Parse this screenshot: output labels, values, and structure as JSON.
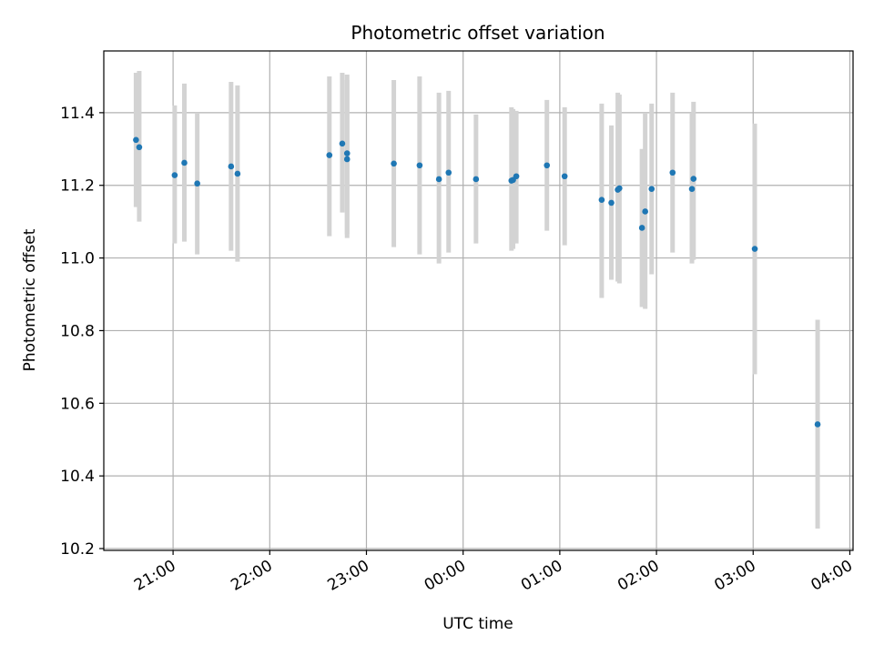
{
  "chart_data": {
    "type": "scatter",
    "title": "Photometric offset variation",
    "xlabel": "UTC time",
    "ylabel": "Photometric offset",
    "x_is_time": true,
    "xlim": [
      "20:17",
      "04:02"
    ],
    "ylim": [
      10.195,
      11.57
    ],
    "x_ticks": [
      "21:00",
      "22:00",
      "23:00",
      "00:00",
      "01:00",
      "02:00",
      "03:00",
      "04:00"
    ],
    "y_ticks": [
      10.2,
      10.4,
      10.6,
      10.8,
      11.0,
      11.2,
      11.4
    ],
    "grid": true,
    "point_color": "#1f77b4",
    "errorbar_color": "#d3d3d3",
    "series": [
      {
        "points": [
          {
            "x": "20:37",
            "y": 11.325,
            "ylow": 11.14,
            "yhigh": 11.51
          },
          {
            "x": "20:39",
            "y": 11.305,
            "ylow": 11.1,
            "yhigh": 11.515
          },
          {
            "x": "21:01",
            "y": 11.228,
            "ylow": 11.04,
            "yhigh": 11.42
          },
          {
            "x": "21:07",
            "y": 11.262,
            "ylow": 11.045,
            "yhigh": 11.48
          },
          {
            "x": "21:15",
            "y": 11.205,
            "ylow": 11.01,
            "yhigh": 11.4
          },
          {
            "x": "21:36",
            "y": 11.252,
            "ylow": 11.02,
            "yhigh": 11.485
          },
          {
            "x": "21:40",
            "y": 11.232,
            "ylow": 10.99,
            "yhigh": 11.475
          },
          {
            "x": "22:37",
            "y": 11.283,
            "ylow": 11.06,
            "yhigh": 11.5
          },
          {
            "x": "22:45",
            "y": 11.315,
            "ylow": 11.125,
            "yhigh": 11.51
          },
          {
            "x": "22:48",
            "y": 11.288,
            "ylow": 11.065,
            "yhigh": 11.505
          },
          {
            "x": "22:48",
            "y": 11.272,
            "ylow": 11.055,
            "yhigh": 11.49
          },
          {
            "x": "23:17",
            "y": 11.26,
            "ylow": 11.03,
            "yhigh": 11.49
          },
          {
            "x": "23:33",
            "y": 11.255,
            "ylow": 11.01,
            "yhigh": 11.5
          },
          {
            "x": "23:45",
            "y": 11.217,
            "ylow": 10.985,
            "yhigh": 11.455
          },
          {
            "x": "23:51",
            "y": 11.235,
            "ylow": 11.015,
            "yhigh": 11.46
          },
          {
            "x": "00:08",
            "y": 11.217,
            "ylow": 11.04,
            "yhigh": 11.395
          },
          {
            "x": "00:30",
            "y": 11.213,
            "ylow": 11.02,
            "yhigh": 11.415
          },
          {
            "x": "00:31",
            "y": 11.215,
            "ylow": 11.025,
            "yhigh": 11.41
          },
          {
            "x": "00:33",
            "y": 11.225,
            "ylow": 11.04,
            "yhigh": 11.405
          },
          {
            "x": "00:52",
            "y": 11.255,
            "ylow": 11.075,
            "yhigh": 11.435
          },
          {
            "x": "01:03",
            "y": 11.225,
            "ylow": 11.035,
            "yhigh": 11.415
          },
          {
            "x": "01:26",
            "y": 11.16,
            "ylow": 10.89,
            "yhigh": 11.425
          },
          {
            "x": "01:32",
            "y": 11.152,
            "ylow": 10.94,
            "yhigh": 11.365
          },
          {
            "x": "01:36",
            "y": 11.188,
            "ylow": 10.935,
            "yhigh": 11.455
          },
          {
            "x": "01:37",
            "y": 11.192,
            "ylow": 10.93,
            "yhigh": 11.45
          },
          {
            "x": "01:51",
            "y": 11.083,
            "ylow": 10.865,
            "yhigh": 11.3
          },
          {
            "x": "01:53",
            "y": 11.128,
            "ylow": 10.86,
            "yhigh": 11.4
          },
          {
            "x": "01:57",
            "y": 11.19,
            "ylow": 10.955,
            "yhigh": 11.425
          },
          {
            "x": "02:10",
            "y": 11.235,
            "ylow": 11.015,
            "yhigh": 11.455
          },
          {
            "x": "02:22",
            "y": 11.19,
            "ylow": 10.985,
            "yhigh": 11.4
          },
          {
            "x": "02:23",
            "y": 11.218,
            "ylow": 10.995,
            "yhigh": 11.43
          },
          {
            "x": "03:01",
            "y": 11.025,
            "ylow": 10.68,
            "yhigh": 11.37
          },
          {
            "x": "03:40",
            "y": 10.542,
            "ylow": 10.255,
            "yhigh": 10.83
          }
        ]
      }
    ]
  }
}
